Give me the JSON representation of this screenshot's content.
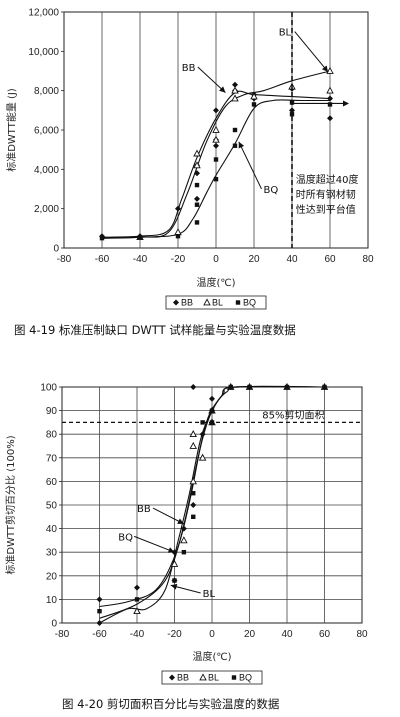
{
  "chart_data": [
    {
      "type": "scatter",
      "caption": "图 4-19  标准压制缺口 DWTT 试样能量与实验温度数据",
      "ylabel": "标准DWTT能量 (J)",
      "xlabel": "温度(℃)",
      "xlim": [
        -80,
        80
      ],
      "ylim": [
        0,
        12000
      ],
      "xticks": [
        "-80",
        "-60",
        "-40",
        "-20",
        "0",
        "20",
        "40",
        "60",
        "80"
      ],
      "yticks": [
        "0",
        "2,000",
        "4,000",
        "6,000",
        "8,000",
        "10,000",
        "12,000"
      ],
      "grid": "vertical",
      "legend": [
        "BB",
        "BL",
        "BQ"
      ],
      "legend_position": "bottom",
      "series": [
        {
          "name": "BB",
          "marker": "diamond",
          "points": [
            [
              -60,
              600
            ],
            [
              -40,
              600
            ],
            [
              -20,
              700
            ],
            [
              -20,
              2000
            ],
            [
              -10,
              4200
            ],
            [
              -10,
              3800
            ],
            [
              -10,
              2500
            ],
            [
              0,
              5500
            ],
            [
              0,
              5200
            ],
            [
              0,
              7000
            ],
            [
              10,
              8000
            ],
            [
              10,
              8300
            ],
            [
              20,
              7600
            ],
            [
              20,
              7800
            ],
            [
              40,
              7000
            ],
            [
              40,
              8100
            ],
            [
              60,
              7600
            ],
            [
              60,
              6600
            ]
          ],
          "curve": [
            [
              -60,
              550
            ],
            [
              -40,
              600
            ],
            [
              -25,
              900
            ],
            [
              -18,
              2500
            ],
            [
              -10,
              4600
            ],
            [
              0,
              6600
            ],
            [
              10,
              7900
            ],
            [
              20,
              7800
            ],
            [
              40,
              7700
            ],
            [
              60,
              7600
            ]
          ]
        },
        {
          "name": "BL",
          "marker": "triangle",
          "points": [
            [
              -40,
              550
            ],
            [
              -20,
              800
            ],
            [
              -10,
              4800
            ],
            [
              -10,
              4200
            ],
            [
              0,
              6000
            ],
            [
              0,
              5500
            ],
            [
              10,
              7600
            ],
            [
              10,
              8000
            ],
            [
              20,
              7700
            ],
            [
              40,
              8200
            ],
            [
              60,
              9000
            ],
            [
              60,
              8000
            ]
          ],
          "curve": [
            [
              -60,
              500
            ],
            [
              -40,
              550
            ],
            [
              -25,
              800
            ],
            [
              -15,
              2800
            ],
            [
              -5,
              5400
            ],
            [
              5,
              7200
            ],
            [
              15,
              7800
            ],
            [
              25,
              8000
            ],
            [
              40,
              8500
            ],
            [
              60,
              9000
            ]
          ]
        },
        {
          "name": "BQ",
          "marker": "square",
          "points": [
            [
              -60,
              500
            ],
            [
              -40,
              550
            ],
            [
              -20,
              600
            ],
            [
              -10,
              1300
            ],
            [
              -10,
              2200
            ],
            [
              -10,
              3200
            ],
            [
              0,
              3500
            ],
            [
              0,
              4500
            ],
            [
              10,
              5200
            ],
            [
              10,
              6000
            ],
            [
              20,
              7300
            ],
            [
              40,
              7400
            ],
            [
              40,
              6800
            ],
            [
              60,
              7300
            ]
          ],
          "curve": [
            [
              -60,
              500
            ],
            [
              -40,
              550
            ],
            [
              -20,
              700
            ],
            [
              -12,
              1500
            ],
            [
              -5,
              2800
            ],
            [
              0,
              3700
            ],
            [
              10,
              5300
            ],
            [
              20,
              7100
            ],
            [
              30,
              7500
            ],
            [
              45,
              7500
            ],
            [
              60,
              7500
            ]
          ]
        }
      ],
      "annotations": [
        {
          "text": "BL",
          "x": 33,
          "y": 10800,
          "arrow_to": [
            59,
            8950
          ]
        },
        {
          "text": "BB",
          "x": -18,
          "y": 9000,
          "arrow_to": [
            5,
            7900
          ]
        },
        {
          "text": "BQ",
          "x": 25,
          "y": 2800,
          "arrow_to": [
            12,
            5400
          ]
        },
        {
          "lines": [
            "温度超过40度",
            "时所有钢材韧",
            "性达到平台值"
          ],
          "x": 42,
          "y": 3300
        }
      ],
      "reference_line": {
        "x": 40,
        "style": "dashed",
        "arrow": "right"
      }
    },
    {
      "type": "scatter",
      "caption": "图 4-20  剪切面积百分比与实验温度的数据",
      "ylabel": "标准DWTT剪切百分比 (100%)",
      "xlabel": "温度(℃)",
      "xlim": [
        -80,
        80
      ],
      "ylim": [
        0,
        100
      ],
      "xticks": [
        "-80",
        "-60",
        "-40",
        "-20",
        "0",
        "20",
        "40",
        "60",
        "80"
      ],
      "yticks": [
        "0",
        "10",
        "20",
        "30",
        "40",
        "50",
        "60",
        "70",
        "80",
        "90",
        "100"
      ],
      "grid": "both",
      "legend": [
        "BB",
        "BL",
        "BQ"
      ],
      "legend_position": "bottom",
      "reference_line": {
        "y": 85,
        "label": "85%剪切面积",
        "style": "dashed"
      },
      "series": [
        {
          "name": "BB",
          "marker": "diamond",
          "points": [
            [
              -60,
              0
            ],
            [
              -60,
              10
            ],
            [
              -40,
              15
            ],
            [
              -20,
              18
            ],
            [
              -20,
              30
            ],
            [
              -15,
              40
            ],
            [
              -10,
              50
            ],
            [
              -10,
              100
            ],
            [
              -5,
              80
            ],
            [
              0,
              90
            ],
            [
              0,
              95
            ],
            [
              10,
              100
            ],
            [
              20,
              100
            ],
            [
              40,
              100
            ],
            [
              60,
              100
            ]
          ],
          "curve": [
            [
              -60,
              7
            ],
            [
              -45,
              9
            ],
            [
              -30,
              14
            ],
            [
              -20,
              28
            ],
            [
              -14,
              45
            ],
            [
              -8,
              68
            ],
            [
              -3,
              85
            ],
            [
              2,
              93
            ],
            [
              8,
              98
            ],
            [
              15,
              100
            ],
            [
              60,
              100
            ]
          ]
        },
        {
          "name": "BL",
          "marker": "triangle",
          "points": [
            [
              -40,
              5
            ],
            [
              -20,
              25
            ],
            [
              -15,
              35
            ],
            [
              -10,
              60
            ],
            [
              -10,
              80
            ],
            [
              -10,
              75
            ],
            [
              -5,
              70
            ],
            [
              0,
              85
            ],
            [
              0,
              90
            ],
            [
              10,
              100
            ],
            [
              20,
              100
            ],
            [
              40,
              100
            ],
            [
              60,
              100
            ]
          ],
          "curve": [
            [
              -60,
              0
            ],
            [
              -45,
              6
            ],
            [
              -35,
              6
            ],
            [
              -25,
              14
            ],
            [
              -18,
              35
            ],
            [
              -12,
              55
            ],
            [
              -6,
              78
            ],
            [
              0,
              90
            ],
            [
              6,
              97
            ],
            [
              12,
              100
            ],
            [
              60,
              100
            ]
          ]
        },
        {
          "name": "BQ",
          "marker": "square",
          "points": [
            [
              -60,
              5
            ],
            [
              -40,
              10
            ],
            [
              -20,
              18
            ],
            [
              -15,
              30
            ],
            [
              -10,
              45
            ],
            [
              -10,
              55
            ],
            [
              -5,
              85
            ],
            [
              0,
              85
            ],
            [
              0,
              90
            ],
            [
              10,
              100
            ],
            [
              20,
              100
            ],
            [
              40,
              100
            ],
            [
              60,
              100
            ]
          ],
          "curve": [
            [
              -60,
              2
            ],
            [
              -40,
              8
            ],
            [
              -25,
              18
            ],
            [
              -17,
              35
            ],
            [
              -11,
              55
            ],
            [
              -6,
              75
            ],
            [
              -1,
              88
            ],
            [
              5,
              96
            ],
            [
              12,
              100
            ],
            [
              60,
              100
            ]
          ]
        }
      ],
      "annotations": [
        {
          "text": "BB",
          "x": -40,
          "y": 47,
          "arrow_to": [
            -15,
            42
          ]
        },
        {
          "text": "BQ",
          "x": -50,
          "y": 35,
          "arrow_to": [
            -20,
            30
          ]
        },
        {
          "text": "BL",
          "x": -5,
          "y": 11,
          "arrow_to": [
            -22,
            16
          ]
        }
      ]
    }
  ]
}
